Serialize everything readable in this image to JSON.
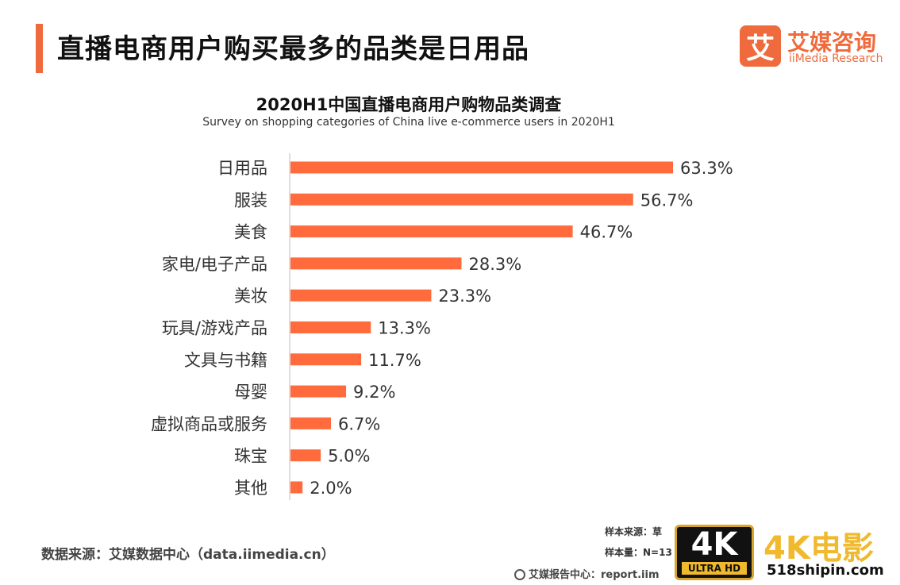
{
  "header": {
    "title": "直播电商用户购买最多的品类是日用品",
    "brand_mark": "艾",
    "brand_cn": "艾媒咨询",
    "brand_en": "iiMedia Research"
  },
  "colors": {
    "accent": "#ef6a3c",
    "bar": "#ff6b3d"
  },
  "chart_data": {
    "type": "bar",
    "orientation": "horizontal",
    "title": "2020H1中国直播电商用户购物品类调查",
    "subtitle": "Survey on shopping categories of China live e-commerce users in 2020H1",
    "categories": [
      "日用品",
      "服装",
      "美食",
      "家电/电子产品",
      "美妆",
      "玩具/游戏产品",
      "文具与书籍",
      "母婴",
      "虚拟商品或服务",
      "珠宝",
      "其他"
    ],
    "values": [
      63.3,
      56.7,
      46.7,
      28.3,
      23.3,
      13.3,
      11.7,
      9.2,
      6.7,
      5.0,
      2.0
    ],
    "value_labels": [
      "63.3%",
      "56.7%",
      "46.7%",
      "28.3%",
      "23.3%",
      "13.3%",
      "11.7%",
      "9.2%",
      "6.7%",
      "5.0%",
      "2.0%"
    ],
    "xlim": [
      0,
      63.3
    ],
    "grid": false,
    "legend": "none"
  },
  "footer": {
    "source": "数据来源：艾媒数据中心（data.iimedia.cn）",
    "sample_source": "样本来源：草",
    "sample_size": "样本量：N=13",
    "report_center": "艾媒报告中心：report.iim"
  },
  "watermark": {
    "badge_main": "4K",
    "badge_sub": "ULTRA HD",
    "title": "4K电影",
    "site": "518shipin.com"
  }
}
